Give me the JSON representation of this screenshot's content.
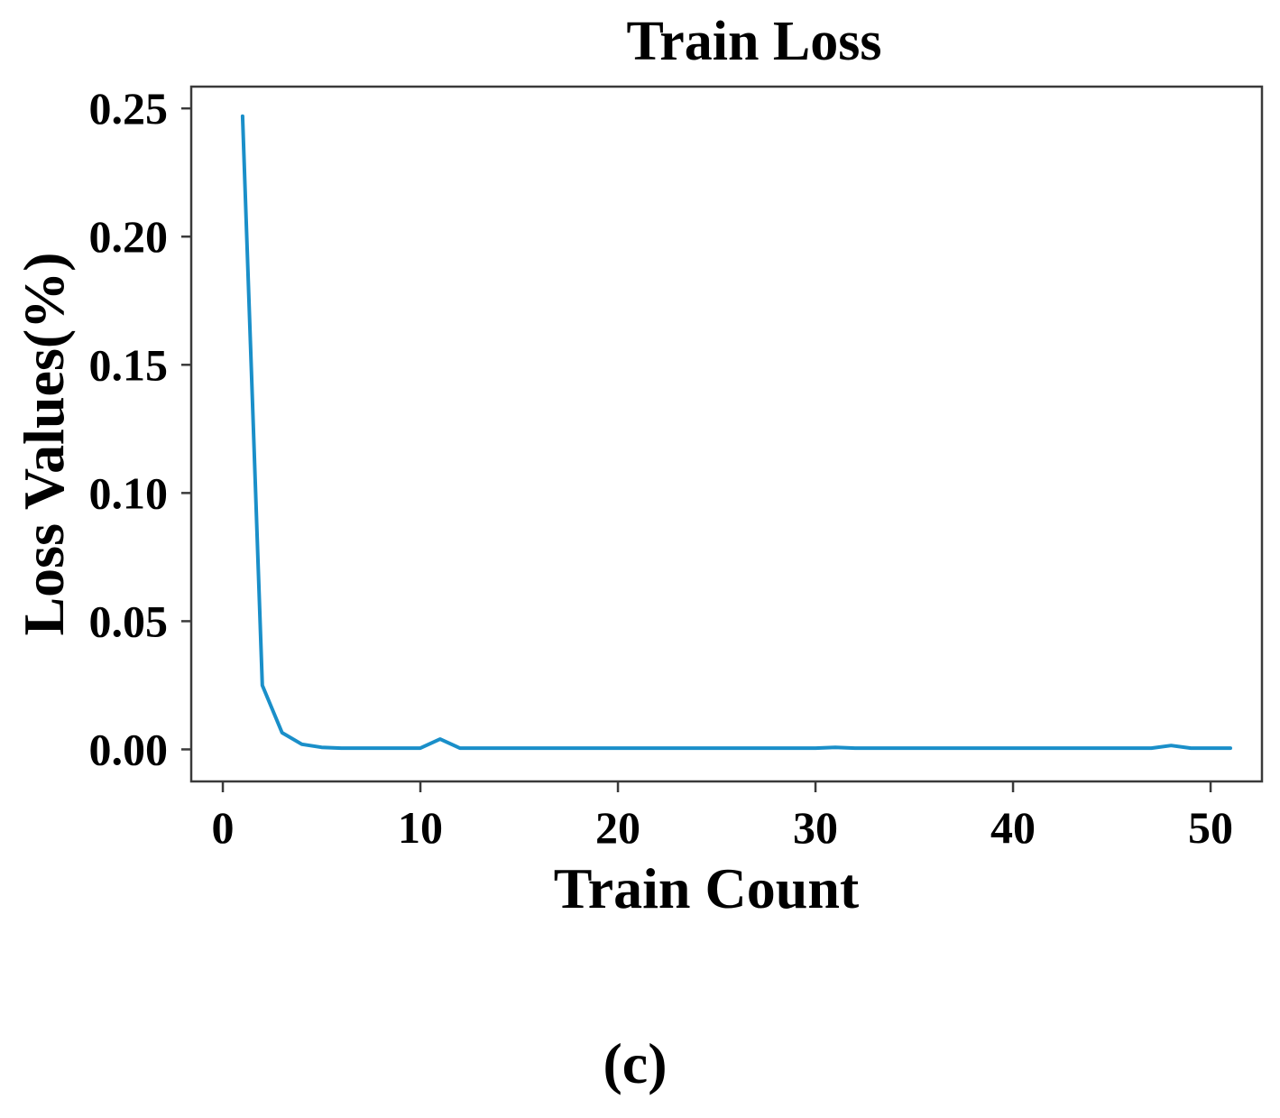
{
  "figure_label": "(c)",
  "chart_data": {
    "type": "line",
    "title": "Train Loss",
    "xlabel": "Train Count",
    "ylabel": "Loss Values(%)",
    "xlim": [
      -1.6,
      52.6
    ],
    "ylim": [
      -0.0125,
      0.2585
    ],
    "x_ticks": [
      0,
      10,
      20,
      30,
      40,
      50
    ],
    "y_ticks": [
      0.0,
      0.05,
      0.1,
      0.15,
      0.2,
      0.25
    ],
    "y_tick_labels": [
      "0.00",
      "0.05",
      "0.10",
      "0.15",
      "0.20",
      "0.25"
    ],
    "grid": false,
    "legend": "none",
    "series": [
      {
        "color": "#1a8fc9",
        "x": [
          1,
          2,
          3,
          4,
          5,
          6,
          7,
          8,
          9,
          10,
          11,
          12,
          13,
          14,
          15,
          16,
          17,
          18,
          19,
          20,
          21,
          22,
          23,
          24,
          25,
          26,
          27,
          28,
          29,
          30,
          31,
          32,
          33,
          34,
          35,
          36,
          37,
          38,
          39,
          40,
          41,
          42,
          43,
          44,
          45,
          46,
          47,
          48,
          49,
          50,
          51
        ],
        "y": [
          0.247,
          0.025,
          0.0065,
          0.002,
          0.0008,
          0.0005,
          0.0005,
          0.0005,
          0.0005,
          0.0005,
          0.004,
          0.0005,
          0.0005,
          0.0005,
          0.0005,
          0.0005,
          0.0005,
          0.0005,
          0.0005,
          0.0005,
          0.0005,
          0.0005,
          0.0005,
          0.0005,
          0.0005,
          0.0005,
          0.0005,
          0.0005,
          0.0005,
          0.0005,
          0.0008,
          0.0005,
          0.0005,
          0.0005,
          0.0005,
          0.0005,
          0.0005,
          0.0005,
          0.0005,
          0.0005,
          0.0005,
          0.0005,
          0.0005,
          0.0005,
          0.0005,
          0.0005,
          0.0005,
          0.0015,
          0.0005,
          0.0005,
          0.0005
        ]
      }
    ]
  }
}
